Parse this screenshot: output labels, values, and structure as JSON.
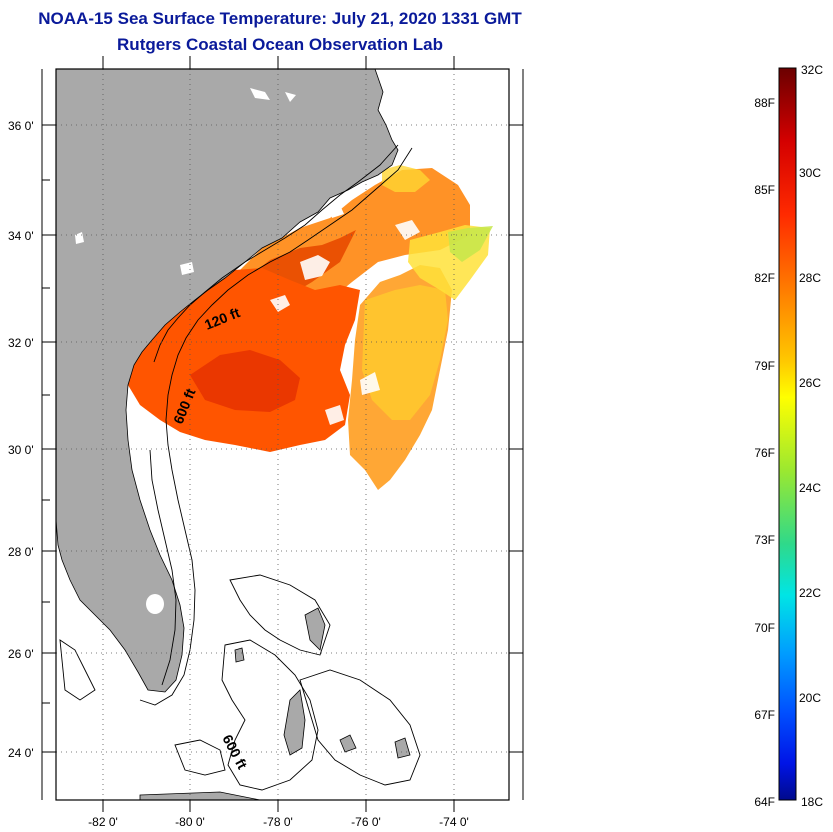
{
  "header": {
    "title": "NOAA-15 Sea Surface Temperature:  July 21, 2020 1331 GMT",
    "subtitle": "Rutgers Coastal Ocean Observation Lab"
  },
  "map": {
    "lat_labels": [
      "36 0'",
      "34 0'",
      "32 0'",
      "30 0'",
      "28 0'",
      "26 0'",
      "24 0'"
    ],
    "lon_labels": [
      "-82 0'",
      "-80 0'",
      "-78 0'",
      "-76 0'",
      "-74 0'"
    ],
    "contour_labels": [
      "120 ft",
      "600 ft",
      "600 ft"
    ],
    "colors": {
      "land": "#a9a9a9",
      "coastline": "#000000",
      "frame": "#000000"
    }
  },
  "colorbar": {
    "celsius_labels": [
      "32C",
      "30C",
      "28C",
      "26C",
      "24C",
      "22C",
      "20C",
      "18C"
    ],
    "fahrenheit_labels": [
      "88F",
      "85F",
      "82F",
      "79F",
      "76F",
      "73F",
      "70F",
      "67F",
      "64F"
    ],
    "gradient_colors": [
      "#6b0000",
      "#d40000",
      "#ff2a00",
      "#ff7a00",
      "#ffc800",
      "#ffff00",
      "#9be830",
      "#2fd98a",
      "#00e5e5",
      "#009cff",
      "#0050ff",
      "#0014e6",
      "#000a8c"
    ]
  }
}
